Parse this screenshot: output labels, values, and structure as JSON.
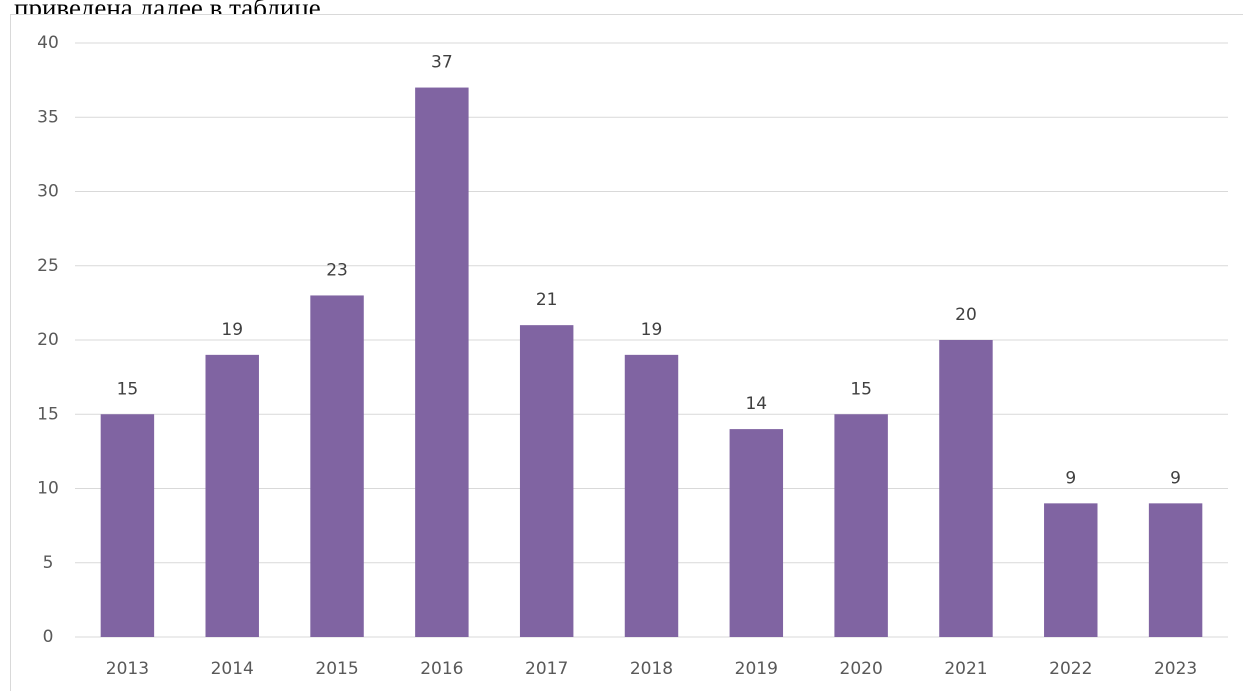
{
  "text_above": "приведена далее в таблице.",
  "chart_data": {
    "type": "bar",
    "categories": [
      "2013",
      "2014",
      "2015",
      "2016",
      "2017",
      "2018",
      "2019",
      "2020",
      "2021",
      "2022",
      "2023"
    ],
    "values": [
      15,
      19,
      23,
      37,
      21,
      19,
      14,
      15,
      20,
      9,
      9
    ],
    "color": "#8064a2",
    "ylim": [
      0,
      40
    ],
    "yticks": [
      0,
      5,
      10,
      15,
      20,
      25,
      30,
      35,
      40
    ],
    "grid": true
  }
}
